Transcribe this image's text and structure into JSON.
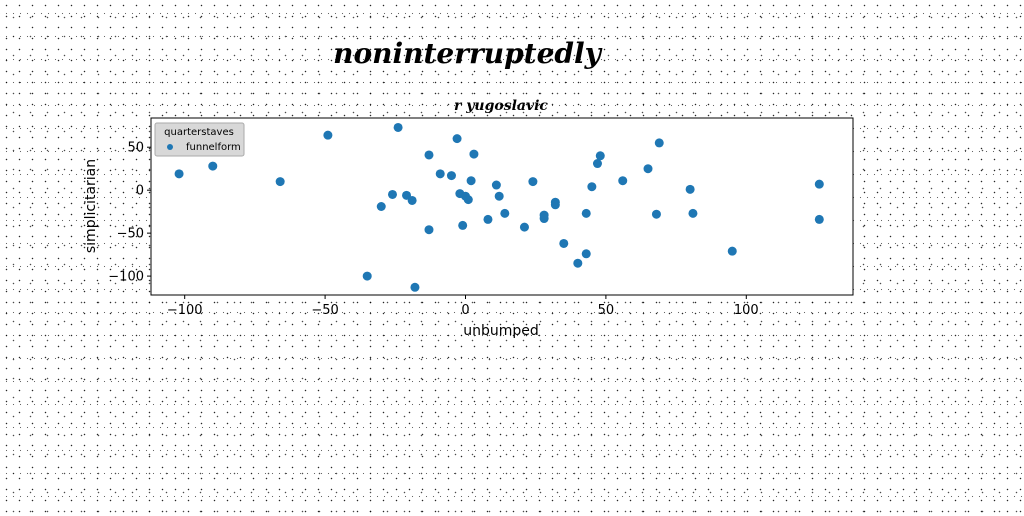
{
  "chart_data": {
    "type": "scatter",
    "suptitle": "noninterruptedly",
    "title": "r yugoslavic",
    "xlabel": "unbumped",
    "ylabel": "simplicitarian",
    "xlim": [
      -112,
      138
    ],
    "ylim": [
      -122,
      84
    ],
    "xticks": [
      -100,
      -50,
      0,
      50,
      100
    ],
    "yticks": [
      -100,
      -50,
      0,
      50
    ],
    "grid": false,
    "legend": {
      "title": "quarterstaves",
      "placement": "top-left"
    },
    "colors": {
      "series": "#1f77b4",
      "legend_bg": "#d8d8d8",
      "legend_border": "#aaaaaa"
    },
    "series": [
      {
        "name": "funnelform",
        "points": [
          [
            -102,
            19
          ],
          [
            -90,
            28
          ],
          [
            -66,
            10
          ],
          [
            -49,
            64
          ],
          [
            -35,
            -100
          ],
          [
            -30,
            -19
          ],
          [
            -26,
            -5
          ],
          [
            -24,
            73
          ],
          [
            -21,
            -6
          ],
          [
            -19,
            -12
          ],
          [
            -18,
            -113
          ],
          [
            -13,
            -46
          ],
          [
            -13,
            41
          ],
          [
            -9,
            19
          ],
          [
            -5,
            17
          ],
          [
            -3,
            60
          ],
          [
            -2,
            -4
          ],
          [
            -1,
            -41
          ],
          [
            0,
            -7
          ],
          [
            1,
            -11
          ],
          [
            2,
            11
          ],
          [
            3,
            42
          ],
          [
            8,
            -34
          ],
          [
            11,
            6
          ],
          [
            12,
            -7
          ],
          [
            14,
            -27
          ],
          [
            21,
            -43
          ],
          [
            24,
            10
          ],
          [
            28,
            -33
          ],
          [
            28,
            -29
          ],
          [
            32,
            -14
          ],
          [
            32,
            -17
          ],
          [
            35,
            -62
          ],
          [
            40,
            -85
          ],
          [
            43,
            -27
          ],
          [
            43,
            -74
          ],
          [
            45,
            4
          ],
          [
            47,
            31
          ],
          [
            48,
            40
          ],
          [
            56,
            11
          ],
          [
            65,
            25
          ],
          [
            68,
            -28
          ],
          [
            69,
            55
          ],
          [
            80,
            1
          ],
          [
            81,
            -27
          ],
          [
            95,
            -71
          ],
          [
            126,
            -34
          ],
          [
            126,
            7
          ]
        ]
      }
    ]
  }
}
